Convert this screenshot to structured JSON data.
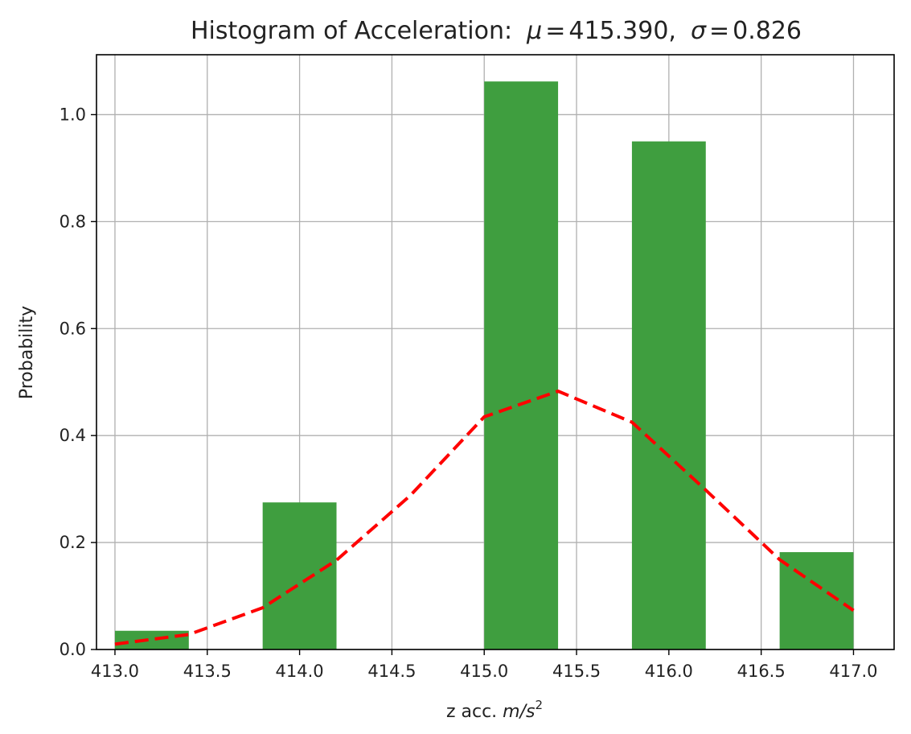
{
  "chart_data": {
    "type": "bar",
    "title": "Histogram of Acceleration",
    "title_stats": {
      "sep": ":",
      "mu_symbol": "μ",
      "mu_value": "415.390",
      "sigma_symbol": "σ",
      "sigma_value": "0.826"
    },
    "xlabel": "z acc.",
    "xlabel_unit": {
      "num": "m/s",
      "exp": "2"
    },
    "ylabel": "Probability",
    "xlim": [
      412.9,
      417.22
    ],
    "ylim": [
      0.0,
      1.112
    ],
    "grid": true,
    "xticks": [
      413.0,
      413.5,
      414.0,
      414.5,
      415.0,
      415.5,
      416.0,
      416.5,
      417.0
    ],
    "xtick_labels": [
      "413.0",
      "413.5",
      "414.0",
      "414.5",
      "415.0",
      "415.5",
      "416.0",
      "416.5",
      "417.0"
    ],
    "yticks": [
      0.0,
      0.2,
      0.4,
      0.6,
      0.8,
      1.0
    ],
    "ytick_labels": [
      "0.0",
      "0.2",
      "0.4",
      "0.6",
      "0.8",
      "1.0"
    ],
    "bar_color": "#3f9e3f",
    "bins": [
      {
        "x0": 413.0,
        "x1": 413.4,
        "value": 0.035
      },
      {
        "x0": 413.8,
        "x1": 414.2,
        "value": 0.275
      },
      {
        "x0": 415.0,
        "x1": 415.4,
        "value": 1.062
      },
      {
        "x0": 415.8,
        "x1": 416.2,
        "value": 0.95
      },
      {
        "x0": 416.6,
        "x1": 417.0,
        "value": 0.182
      }
    ],
    "curve": {
      "color": "#ff0000",
      "style": "dashed",
      "x": [
        413.0,
        413.4,
        413.8,
        414.2,
        414.6,
        415.0,
        415.4,
        415.8,
        416.2,
        416.6,
        417.0
      ],
      "y": [
        0.01,
        0.028,
        0.078,
        0.167,
        0.288,
        0.435,
        0.483,
        0.425,
        0.298,
        0.168,
        0.073
      ]
    }
  }
}
